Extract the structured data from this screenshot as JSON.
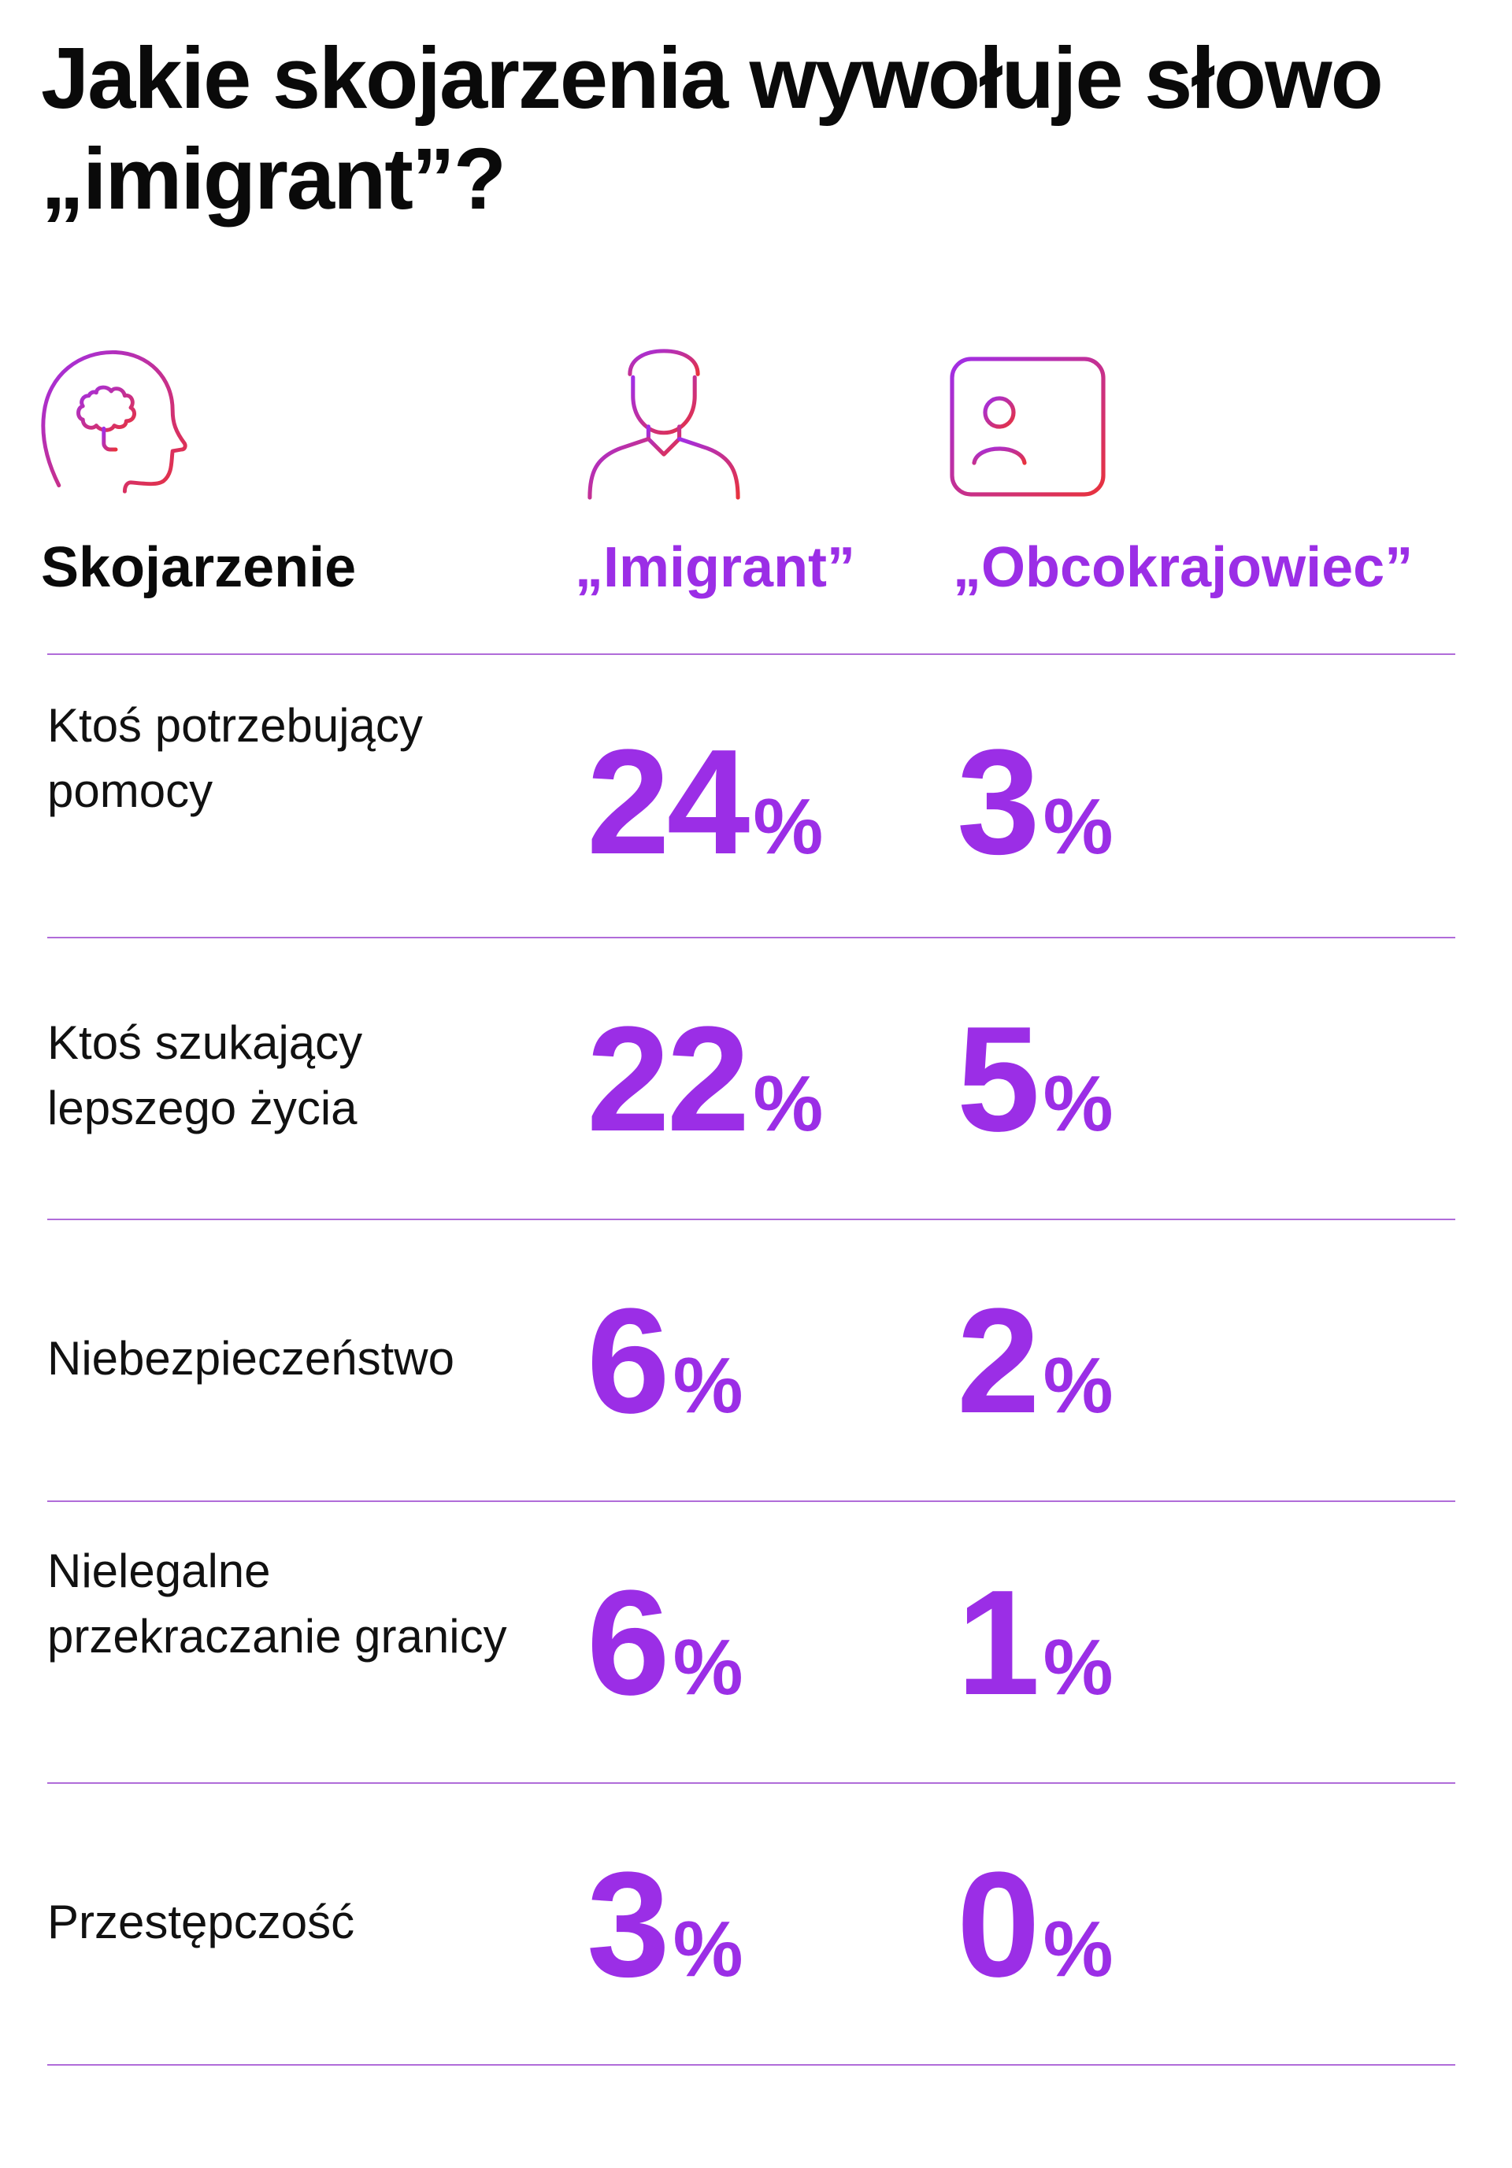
{
  "title": "Jakie skojarzenia wywołuje słowo „imigrant”?",
  "headers": {
    "association": "Skojarzenie",
    "imigrant": "„Imigrant”",
    "obcokrajowiec": "„Obcokrajowiec”"
  },
  "icons": [
    "head-brain-icon",
    "worker-cap-icon",
    "id-card-icon"
  ],
  "colors": {
    "accent": "#9b2ee6",
    "icon_gradient_start": "#a02ee8",
    "icon_gradient_end": "#e8323c",
    "rule": "#b06cd9"
  },
  "percent_sign": "%",
  "chart_data": {
    "type": "table",
    "columns": [
      "Skojarzenie",
      "„Imigrant”",
      "„Obcokrajowiec”"
    ],
    "rows": [
      {
        "label": "Ktoś potrzebujący pomocy",
        "imigrant": "24",
        "obcokrajowiec": "3"
      },
      {
        "label": "Ktoś szukający lepszego życia",
        "imigrant": "22",
        "obcokrajowiec": "5"
      },
      {
        "label": "Niebezpieczeństwo",
        "imigrant": "6",
        "obcokrajowiec": "2"
      },
      {
        "label": "Nielegalne przekraczanie granicy",
        "imigrant": "6",
        "obcokrajowiec": "1"
      },
      {
        "label": "Przestępczość",
        "imigrant": "3",
        "obcokrajowiec": "0"
      }
    ],
    "unit": "%"
  }
}
